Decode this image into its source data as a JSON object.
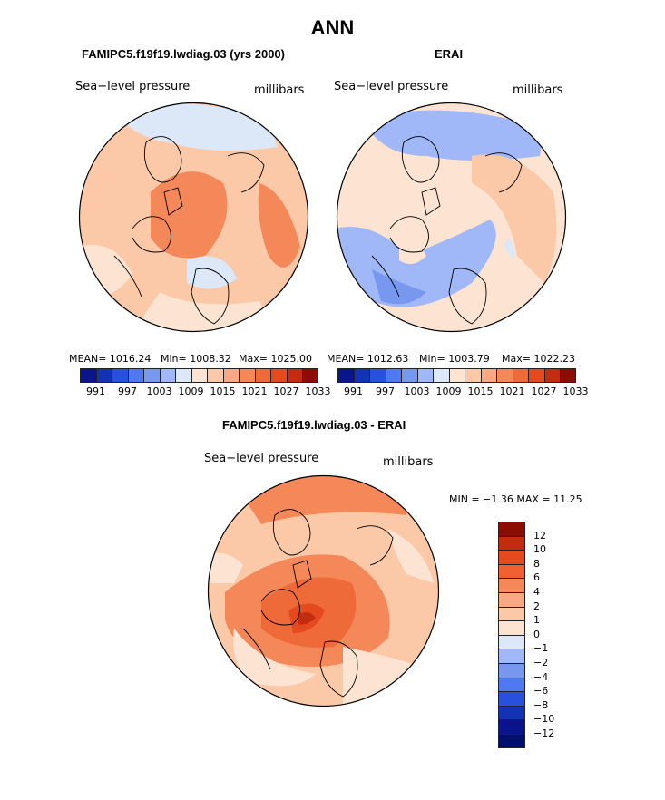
{
  "title": "ANN",
  "panel_left": {
    "case": "FAMIPC5.f19f19.lwdiag.03 (yrs 2000)",
    "variable": "Sea−level pressure",
    "units": "millibars",
    "stats": {
      "mean": "MEAN= 1016.24",
      "min": "Min= 1008.32",
      "max": "Max= 1025.00"
    }
  },
  "panel_right": {
    "case": "ERAI",
    "variable": "Sea−level pressure",
    "units": "millibars",
    "stats": {
      "mean": "MEAN= 1012.63",
      "min": "Min= 1003.79",
      "max": "Max= 1022.23"
    }
  },
  "abs_colorbar": {
    "colors": [
      "#0a148c",
      "#1432b4",
      "#2850dc",
      "#5078f0",
      "#7898f0",
      "#a0b8f8",
      "#dce8f8",
      "#fde3d2",
      "#fbc8a8",
      "#f8a882",
      "#f48858",
      "#ee6a38",
      "#e44a1e",
      "#c42c10",
      "#8c0c04"
    ],
    "labels": [
      "991",
      "997",
      "1003",
      "1009",
      "1015",
      "1021",
      "1027",
      "1033"
    ]
  },
  "panel_diff": {
    "case": "FAMIPC5.f19f19.lwdiag.03 - ERAI",
    "variable": "Sea−level pressure",
    "units": "millibars",
    "stats": "MIN =  −1.36 MAX =  11.25"
  },
  "diff_colorbar": {
    "colors": [
      "#8c0c04",
      "#c42c10",
      "#e44a1e",
      "#f06030",
      "#f48858",
      "#f8a882",
      "#fbc8a8",
      "#fde3d2",
      "#dce8f8",
      "#a0b8f8",
      "#7898f0",
      "#5078f0",
      "#2850dc",
      "#1432b4",
      "#0a148c",
      "#001070"
    ],
    "labels": [
      "12",
      "10",
      "8",
      "6",
      "4",
      "2",
      "1",
      "0",
      "−1",
      "−2",
      "−4",
      "−6",
      "−8",
      "−10",
      "−12"
    ]
  }
}
